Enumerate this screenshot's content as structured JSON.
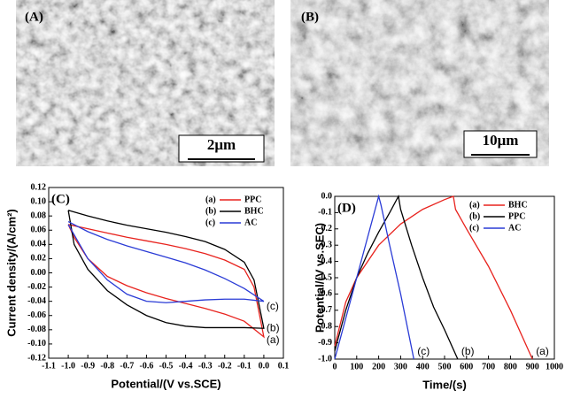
{
  "images": [
    {
      "label": "(A)",
      "scale": "2μm"
    },
    {
      "label": "(B)",
      "scale": "10μm"
    }
  ],
  "chart_data": [
    {
      "type": "line",
      "label": "(C)",
      "xlabel": "Potential/(V vs.SCE)",
      "ylabel": "Current density/(A/cm²)",
      "xlim": [
        -1.1,
        0.1
      ],
      "ylim": [
        -0.12,
        0.12
      ],
      "xticks": [
        -1.1,
        {
          "value": -1,
          "label": "-1.0"
        },
        -0.9,
        -0.8,
        -0.7,
        -0.6,
        -0.5,
        -0.4,
        -0.3,
        -0.2,
        -0.1,
        {
          "value": 0,
          "label": "0.0"
        },
        0.1
      ],
      "yticks": [
        0.12,
        {
          "value": 0.1,
          "label": "0.10"
        },
        0.08,
        0.06,
        0.04,
        0.02,
        {
          "value": 0,
          "label": "0.00"
        },
        -0.02,
        -0.04,
        -0.06,
        -0.08,
        {
          "value": -0.1,
          "label": "-0.10"
        },
        -0.12
      ],
      "series": [
        {
          "name": "PPC",
          "tag": "(a)",
          "color": "#e8231e",
          "x": [
            -1.0,
            -0.9,
            -0.8,
            -0.7,
            -0.6,
            -0.5,
            -0.4,
            -0.3,
            -0.2,
            -0.1,
            -0.05,
            0.0,
            -0.1,
            -0.2,
            -0.3,
            -0.4,
            -0.5,
            -0.6,
            -0.7,
            -0.8,
            -0.9,
            -0.97,
            -1.0
          ],
          "values": [
            0.068,
            0.062,
            0.056,
            0.05,
            0.045,
            0.04,
            0.034,
            0.027,
            0.018,
            0.005,
            -0.02,
            -0.09,
            -0.068,
            -0.058,
            -0.05,
            -0.043,
            -0.036,
            -0.028,
            -0.018,
            -0.005,
            0.02,
            0.05,
            0.068
          ]
        },
        {
          "name": "BHC",
          "tag": "(b)",
          "color": "#000000",
          "x": [
            -1.0,
            -0.9,
            -0.8,
            -0.7,
            -0.6,
            -0.5,
            -0.4,
            -0.3,
            -0.2,
            -0.1,
            -0.05,
            0.0,
            -0.1,
            -0.2,
            -0.3,
            -0.4,
            -0.5,
            -0.6,
            -0.7,
            -0.8,
            -0.9,
            -0.97,
            -1.0
          ],
          "values": [
            0.088,
            0.08,
            0.073,
            0.067,
            0.062,
            0.057,
            0.051,
            0.044,
            0.033,
            0.015,
            -0.01,
            -0.078,
            -0.077,
            -0.077,
            -0.077,
            -0.075,
            -0.07,
            -0.06,
            -0.045,
            -0.025,
            0.005,
            0.04,
            0.088
          ]
        },
        {
          "name": "AC",
          "tag": "(c)",
          "color": "#2a3bd6",
          "x": [
            -1.0,
            -0.9,
            -0.8,
            -0.7,
            -0.6,
            -0.5,
            -0.4,
            -0.3,
            -0.2,
            -0.1,
            0.0,
            -0.1,
            -0.2,
            -0.3,
            -0.4,
            -0.5,
            -0.6,
            -0.7,
            -0.8,
            -0.9,
            -1.0
          ],
          "values": [
            0.072,
            0.058,
            0.047,
            0.038,
            0.03,
            0.022,
            0.014,
            0.004,
            -0.008,
            -0.022,
            -0.04,
            -0.037,
            -0.037,
            -0.038,
            -0.04,
            -0.042,
            -0.04,
            -0.03,
            -0.01,
            0.02,
            0.068
          ]
        }
      ]
    },
    {
      "type": "line",
      "label": "(D)",
      "xlabel": "Time/(s)",
      "ylabel": "Potential/(V vs.SEC)",
      "xlim": [
        0,
        1000
      ],
      "ylim": [
        -1,
        0
      ],
      "xticks": [
        0,
        100,
        200,
        300,
        400,
        500,
        600,
        700,
        800,
        900,
        1000
      ],
      "yticks": [
        {
          "value": 0,
          "label": "0.0"
        },
        -0.1,
        -0.2,
        -0.3,
        -0.4,
        -0.5,
        -0.6,
        -0.7,
        -0.8,
        -0.9,
        {
          "value": -1,
          "label": "-1.0"
        }
      ],
      "series": [
        {
          "name": "BHC",
          "tag": "(a)",
          "color": "#e8231e",
          "x": [
            0,
            50,
            100,
            200,
            300,
            400,
            500,
            540,
            550,
            600,
            700,
            800,
            900
          ],
          "values": [
            -0.92,
            -0.65,
            -0.5,
            -0.3,
            -0.17,
            -0.08,
            -0.02,
            0,
            -0.08,
            -0.2,
            -0.43,
            -0.7,
            -1
          ]
        },
        {
          "name": "PPC",
          "tag": "(b)",
          "color": "#000000",
          "x": [
            0,
            50,
            100,
            150,
            200,
            250,
            290,
            300,
            350,
            400,
            450,
            500,
            560
          ],
          "values": [
            -0.95,
            -0.7,
            -0.5,
            -0.35,
            -0.22,
            -0.1,
            0,
            -0.08,
            -0.3,
            -0.5,
            -0.68,
            -0.82,
            -1
          ]
        },
        {
          "name": "AC",
          "tag": "(c)",
          "color": "#2a3bd6",
          "x": [
            0,
            50,
            100,
            150,
            200,
            210,
            250,
            300,
            360
          ],
          "values": [
            -1,
            -0.75,
            -0.5,
            -0.25,
            0,
            -0.05,
            -0.3,
            -0.6,
            -1
          ]
        }
      ]
    }
  ]
}
